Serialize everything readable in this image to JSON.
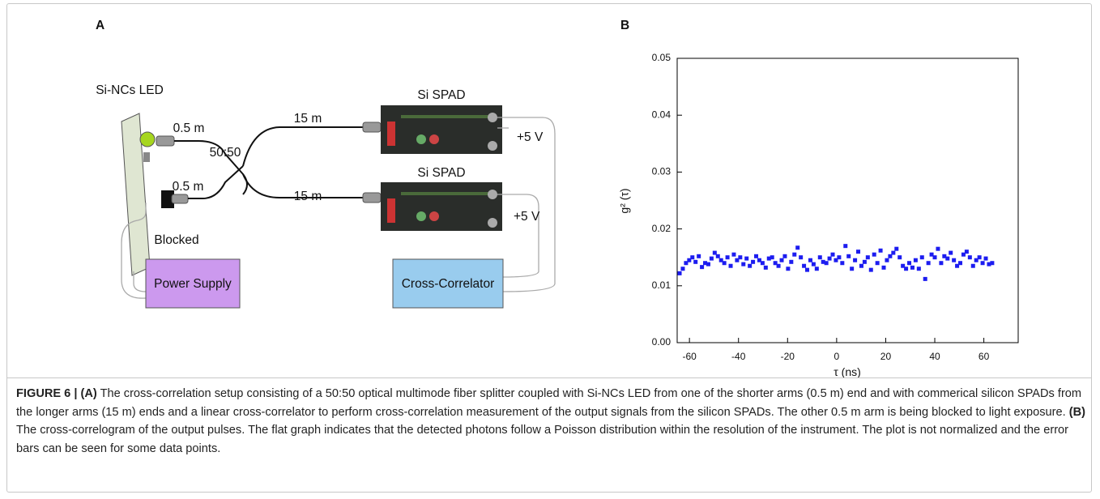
{
  "panel_a": {
    "label": "A",
    "led": "Si-NCs LED",
    "short_arm_1": "0.5 m",
    "short_arm_2": "0.5 m",
    "splitter": "50:50",
    "long_arm_1": "15 m",
    "long_arm_2": "15 m",
    "spad_1": "Si SPAD",
    "spad_2": "Si SPAD",
    "voltage_1": "+5 V",
    "voltage_2": "+5 V",
    "blocked": "Blocked",
    "power_supply": "Power Supply",
    "correlator": "Cross-Correlator"
  },
  "chart_data": {
    "type": "scatter",
    "panel_label": "B",
    "xlabel": "τ (ns)",
    "ylabel": "g² (τ)",
    "color": "#1c1cf0",
    "x": [
      -64,
      -62.7,
      -61.4,
      -60.1,
      -58.8,
      -57.5,
      -56.2,
      -54.9,
      -53.6,
      -52.3,
      -51,
      -49.7,
      -48.4,
      -47.1,
      -45.8,
      -44.5,
      -43.2,
      -41.9,
      -40.6,
      -39.3,
      -38,
      -36.7,
      -35.4,
      -34.1,
      -32.8,
      -31.5,
      -30.2,
      -28.9,
      -27.6,
      -26.3,
      -25,
      -23.7,
      -22.4,
      -21.1,
      -19.8,
      -18.5,
      -17.2,
      -15.9,
      -14.6,
      -13.3,
      -12,
      -10.7,
      -9.4,
      -8.1,
      -6.8,
      -5.5,
      -4.2,
      -2.9,
      -1.6,
      -0.3,
      1,
      2.3,
      3.6,
      4.9,
      6.2,
      7.5,
      8.8,
      10.1,
      11.4,
      12.7,
      14,
      15.3,
      16.6,
      17.9,
      19.2,
      20.5,
      21.8,
      23.1,
      24.4,
      25.7,
      27,
      28.3,
      29.6,
      30.9,
      32.2,
      33.5,
      34.8,
      36.1,
      37.4,
      38.7,
      40,
      41.3,
      42.6,
      43.9,
      45.2,
      46.5,
      47.8,
      49.1,
      50.4,
      51.7,
      53,
      54.3,
      55.6,
      56.9,
      58.2,
      59.5,
      60.8,
      62.1,
      63.4
    ],
    "values": [
      0.0122,
      0.013,
      0.014,
      0.0145,
      0.015,
      0.0142,
      0.0152,
      0.0133,
      0.014,
      0.0138,
      0.0148,
      0.0158,
      0.0152,
      0.0145,
      0.014,
      0.015,
      0.0135,
      0.0155,
      0.0145,
      0.015,
      0.0138,
      0.0148,
      0.0135,
      0.0142,
      0.0152,
      0.0145,
      0.014,
      0.0132,
      0.0148,
      0.015,
      0.014,
      0.0135,
      0.0145,
      0.0152,
      0.013,
      0.0142,
      0.0155,
      0.0167,
      0.015,
      0.0135,
      0.0128,
      0.0145,
      0.0138,
      0.013,
      0.015,
      0.0142,
      0.014,
      0.0148,
      0.0155,
      0.0145,
      0.015,
      0.014,
      0.017,
      0.0152,
      0.013,
      0.0145,
      0.016,
      0.0135,
      0.0142,
      0.015,
      0.0128,
      0.0155,
      0.014,
      0.0162,
      0.0132,
      0.0145,
      0.0152,
      0.0158,
      0.0165,
      0.015,
      0.0135,
      0.013,
      0.014,
      0.0132,
      0.0145,
      0.013,
      0.015,
      0.0112,
      0.014,
      0.0155,
      0.015,
      0.0165,
      0.014,
      0.0152,
      0.0148,
      0.0158,
      0.0145,
      0.0135,
      0.014,
      0.0155,
      0.016,
      0.015,
      0.0135,
      0.0145,
      0.015,
      0.014,
      0.0148,
      0.0138,
      0.014
    ],
    "xlim": [
      -65,
      74
    ],
    "ylim": [
      0,
      0.05
    ],
    "xticks": [
      -60,
      -40,
      -20,
      0,
      20,
      40,
      60
    ],
    "yticks": [
      {
        "value": 0,
        "label": "0.00"
      },
      0.01,
      0.02,
      0.03,
      0.04,
      0.05
    ]
  },
  "caption": {
    "label": "FIGURE 6 |",
    "parts": [
      {
        "label": "(A)",
        "text": "The cross-correlation setup consisting of a 50:50 optical multimode fiber splitter coupled with Si-NCs LED from one of the shorter arms (0.5 m) end and with commerical silicon SPADs from the longer arms (15 m) ends and a linear cross-correlator to perform cross-correlation measurement of the output signals from the silicon SPADs. The other 0.5 m arm is being blocked to light exposure."
      },
      {
        "label": "(B)",
        "text": "The cross-correlogram of the output pulses. The flat graph indicates that the detected photons follow a Poisson distribution within the resolution of the instrument. The plot is not normalized and the error bars can be seen for some data points."
      }
    ]
  }
}
